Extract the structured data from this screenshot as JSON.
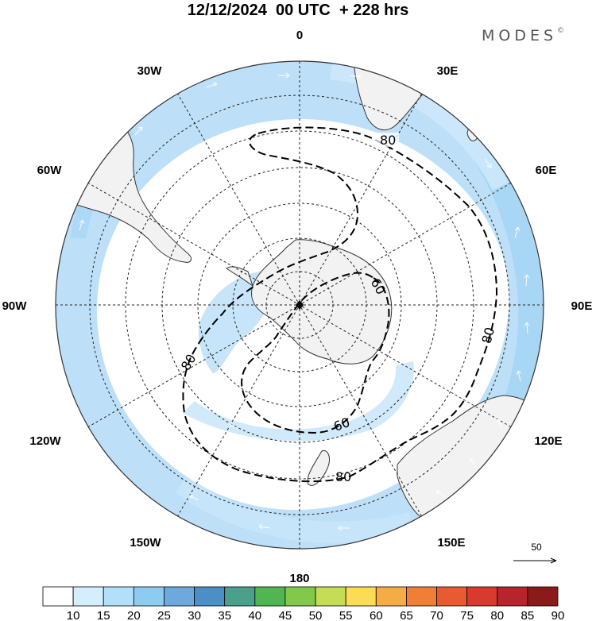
{
  "title": "12/12/2024  00 UTC  + 228 hrs",
  "brand": "MODES",
  "brand_mark": "©",
  "map": {
    "projection": "south-polar-stereographic",
    "longitude_labels": [
      {
        "text": "0",
        "lon": 0
      },
      {
        "text": "30E",
        "lon": 30
      },
      {
        "text": "60E",
        "lon": 60
      },
      {
        "text": "90E",
        "lon": 90
      },
      {
        "text": "120E",
        "lon": 120
      },
      {
        "text": "150E",
        "lon": 150
      },
      {
        "text": "180",
        "lon": 180
      },
      {
        "text": "150W",
        "lon": -150
      },
      {
        "text": "120W",
        "lon": -120
      },
      {
        "text": "90W",
        "lon": -90
      },
      {
        "text": "60W",
        "lon": -60
      },
      {
        "text": "30W",
        "lon": -30
      }
    ],
    "latitude_circles": [
      -80,
      -70,
      -60,
      -50,
      -40,
      -30,
      -20
    ],
    "contours": [
      {
        "value": "80",
        "labels": [
          "80",
          "80",
          "80",
          "80"
        ]
      },
      {
        "value": "60",
        "labels": [
          "60",
          "60"
        ]
      }
    ],
    "wind_shading_colors": [
      "#cfe9fb",
      "#b5ddf7",
      "#9dd0f3"
    ],
    "land_color": "#f2f2f2",
    "reference_vector": {
      "label": "50"
    }
  },
  "colorbar": {
    "labels": [
      "10",
      "15",
      "20",
      "25",
      "30",
      "35",
      "40",
      "45",
      "50",
      "55",
      "60",
      "65",
      "70",
      "75",
      "80",
      "85",
      "90"
    ],
    "colors": [
      "#ffffff",
      "#d4eefd",
      "#b2e0f8",
      "#8ecbf0",
      "#6ea9dd",
      "#4c8ec6",
      "#4aa08a",
      "#4fb652",
      "#82c84a",
      "#c5dd55",
      "#fadc55",
      "#f5ac45",
      "#f07f35",
      "#e85a2f",
      "#d83a30",
      "#b8242d",
      "#8c1a1a"
    ]
  }
}
